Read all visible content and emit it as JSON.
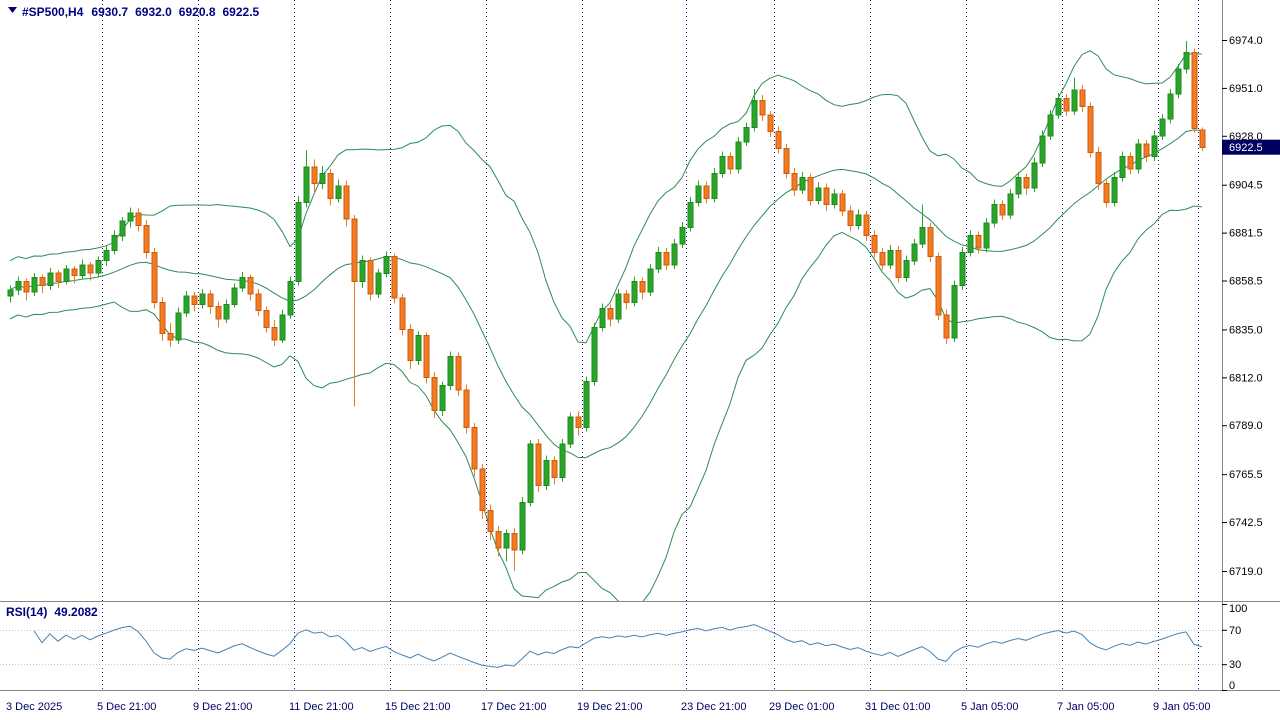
{
  "header": {
    "symbol_timeframe": "#SP500,H4",
    "open": "6930.7",
    "high": "6932.0",
    "low": "6920.8",
    "close": "6922.5"
  },
  "indicator": {
    "label": "RSI(14)",
    "value": "49.2082"
  },
  "colors": {
    "bull": "#2aa52a",
    "bullStroke": "#1c8a1c",
    "bear": "#f07b21",
    "bearStroke": "#cf5a10",
    "bollinger": "#2e8b57",
    "rsi": "#4682b4",
    "separator": "#000080",
    "level": "#c8c8c8",
    "frame": "#888888",
    "axisText": "#000000",
    "timeText": "#000066",
    "badgeBg": "#000060",
    "badgeText": "#ffffff"
  },
  "chart_data": {
    "type": "candlestick",
    "symbol": "#SP500",
    "timeframe": "H4",
    "ohlc": {
      "open": 6930.7,
      "high": 6932.0,
      "low": 6920.8,
      "close": 6922.5
    },
    "current_price": 6922.5,
    "ylim": [
      6719.0,
      6974.0
    ],
    "price_ticks": [
      6974.0,
      6951.0,
      6928.0,
      6904.5,
      6881.5,
      6858.5,
      6835.0,
      6812.0,
      6789.0,
      6765.5,
      6742.5,
      6719.0
    ],
    "time_labels": [
      {
        "text": "3 Dec 2025",
        "i": 0
      },
      {
        "text": "5 Dec 21:00",
        "i": 12
      },
      {
        "text": "9 Dec 21:00",
        "i": 24
      },
      {
        "text": "11 Dec 21:00",
        "i": 36
      },
      {
        "text": "15 Dec 21:00",
        "i": 48
      },
      {
        "text": "17 Dec 21:00",
        "i": 60
      },
      {
        "text": "19 Dec 21:00",
        "i": 72
      },
      {
        "text": "23 Dec 21:00",
        "i": 85
      },
      {
        "text": "29 Dec 01:00",
        "i": 96
      },
      {
        "text": "31 Dec 01:00",
        "i": 108
      },
      {
        "text": "5 Jan 05:00",
        "i": 120
      },
      {
        "text": "7 Jan 05:00",
        "i": 132
      },
      {
        "text": "9 Jan 05:00",
        "i": 144
      }
    ],
    "separators": [
      12,
      24,
      36,
      48,
      60,
      72,
      85,
      96,
      108,
      120,
      132,
      144,
      149
    ],
    "overlays": [
      {
        "name": "Bollinger Bands",
        "period": 20,
        "deviation": 2,
        "applied_to": "close"
      }
    ],
    "rsi": {
      "name": "RSI",
      "period": 14,
      "value": 49.2082,
      "range": [
        0,
        100
      ],
      "ticks": [
        100,
        70,
        30,
        0
      ],
      "levels": [
        70,
        30
      ]
    },
    "candles": [
      [
        6851,
        6856,
        6848,
        6854
      ],
      [
        6854,
        6860.5,
        6851.5,
        6858
      ],
      [
        6858,
        6859.5,
        6849,
        6853
      ],
      [
        6853,
        6862,
        6851,
        6860
      ],
      [
        6860,
        6861.5,
        6852.5,
        6856
      ],
      [
        6856,
        6864.5,
        6854,
        6862
      ],
      [
        6862,
        6863.5,
        6855,
        6858
      ],
      [
        6858,
        6866,
        6856.5,
        6864
      ],
      [
        6864,
        6865.5,
        6857,
        6861
      ],
      [
        6861,
        6868.5,
        6859,
        6866
      ],
      [
        6866,
        6867.5,
        6858.5,
        6862
      ],
      [
        6862,
        6870,
        6860,
        6868
      ],
      [
        6868,
        6875.5,
        6865.5,
        6873
      ],
      [
        6873,
        6882.5,
        6871,
        6880
      ],
      [
        6880,
        6889,
        6877.5,
        6887
      ],
      [
        6887,
        6893.5,
        6884,
        6891
      ],
      [
        6891,
        6893,
        6882,
        6885
      ],
      [
        6885,
        6887.5,
        6869,
        6872
      ],
      [
        6872,
        6874,
        6845,
        6848
      ],
      [
        6848,
        6850.5,
        6829.5,
        6833
      ],
      [
        6833,
        6838,
        6826.5,
        6830
      ],
      [
        6830,
        6845.5,
        6828,
        6843
      ],
      [
        6843,
        6853.5,
        6841,
        6851
      ],
      [
        6851,
        6853,
        6843.5,
        6847
      ],
      [
        6847,
        6854.5,
        6845,
        6852
      ],
      [
        6852,
        6854,
        6842.5,
        6846
      ],
      [
        6846,
        6848.5,
        6836,
        6840
      ],
      [
        6840,
        6849.5,
        6838,
        6847
      ],
      [
        6847,
        6857,
        6845.5,
        6855
      ],
      [
        6855,
        6862.5,
        6853,
        6860
      ],
      [
        6860,
        6861.5,
        6849,
        6852
      ],
      [
        6852,
        6854.5,
        6841.5,
        6844
      ],
      [
        6844,
        6846,
        6833.5,
        6836
      ],
      [
        6836,
        6839.5,
        6827,
        6830
      ],
      [
        6830,
        6844.5,
        6828.5,
        6842
      ],
      [
        6842,
        6860.5,
        6840,
        6858
      ],
      [
        6858,
        6899,
        6856,
        6896
      ],
      [
        6896,
        6921,
        6893.5,
        6913
      ],
      [
        6913,
        6916.5,
        6901,
        6905
      ],
      [
        6905,
        6913.5,
        6902.5,
        6910
      ],
      [
        6910,
        6912,
        6894.5,
        6898
      ],
      [
        6898,
        6907,
        6896,
        6904
      ],
      [
        6904,
        6906.5,
        6884.5,
        6888
      ],
      [
        6888,
        6890,
        6798,
        6858
      ],
      [
        6858,
        6870.5,
        6855,
        6868
      ],
      [
        6868,
        6869.5,
        6849,
        6852
      ],
      [
        6852,
        6864,
        6850,
        6862
      ],
      [
        6862,
        6872.5,
        6860,
        6870
      ],
      [
        6870,
        6871.5,
        6847.5,
        6850
      ],
      [
        6850,
        6852,
        6832,
        6835
      ],
      [
        6835,
        6837.5,
        6816,
        6820
      ],
      [
        6820,
        6834,
        6818,
        6832
      ],
      [
        6832,
        6833.5,
        6809,
        6812
      ],
      [
        6812,
        6814.5,
        6792.5,
        6796
      ],
      [
        6796,
        6810,
        6793.5,
        6808
      ],
      [
        6808,
        6824.5,
        6806,
        6822
      ],
      [
        6822,
        6824,
        6803,
        6806
      ],
      [
        6806,
        6808.5,
        6785,
        6788
      ],
      [
        6788,
        6790,
        6764.5,
        6768
      ],
      [
        6768,
        6770.5,
        6744,
        6748
      ],
      [
        6748,
        6751,
        6734,
        6738
      ],
      [
        6738,
        6740.5,
        6726,
        6730
      ],
      [
        6730,
        6739,
        6723.5,
        6737
      ],
      [
        6737,
        6739.5,
        6719,
        6729
      ],
      [
        6729,
        6754.5,
        6727,
        6752
      ],
      [
        6752,
        6782,
        6750,
        6780
      ],
      [
        6780,
        6782.5,
        6757,
        6760
      ],
      [
        6760,
        6774.5,
        6758,
        6772
      ],
      [
        6772,
        6774,
        6760.5,
        6764
      ],
      [
        6764,
        6782.5,
        6762,
        6780
      ],
      [
        6780,
        6795,
        6778,
        6793
      ],
      [
        6793,
        6795.5,
        6784,
        6788
      ],
      [
        6788,
        6812.5,
        6786,
        6810
      ],
      [
        6810,
        6838,
        6808,
        6836
      ],
      [
        6836,
        6847.5,
        6834,
        6845
      ],
      [
        6845,
        6847,
        6836.5,
        6840
      ],
      [
        6840,
        6854.5,
        6838,
        6852
      ],
      [
        6852,
        6854,
        6844.5,
        6848
      ],
      [
        6848,
        6860.5,
        6846,
        6858
      ],
      [
        6858,
        6860,
        6849.5,
        6853
      ],
      [
        6853,
        6866.5,
        6851,
        6864
      ],
      [
        6864,
        6874.5,
        6862,
        6872
      ],
      [
        6872,
        6874,
        6863.5,
        6866
      ],
      [
        6866,
        6878.5,
        6864,
        6876
      ],
      [
        6876,
        6886.5,
        6874,
        6884
      ],
      [
        6884,
        6898.5,
        6882,
        6896
      ],
      [
        6896,
        6906.5,
        6894,
        6904
      ],
      [
        6904,
        6906,
        6895.5,
        6898
      ],
      [
        6898,
        6912.5,
        6896,
        6910
      ],
      [
        6910,
        6920.5,
        6908,
        6918
      ],
      [
        6918,
        6920,
        6909.5,
        6912
      ],
      [
        6912,
        6927.5,
        6910,
        6925
      ],
      [
        6925,
        6934.5,
        6923,
        6932
      ],
      [
        6932,
        6950.5,
        6930,
        6945
      ],
      [
        6945,
        6947.5,
        6935,
        6938
      ],
      [
        6938,
        6940,
        6927.5,
        6930
      ],
      [
        6930,
        6932.5,
        6919.5,
        6922
      ],
      [
        6922,
        6924,
        6907.5,
        6910
      ],
      [
        6910,
        6912.5,
        6899,
        6902
      ],
      [
        6902,
        6910.5,
        6900,
        6908
      ],
      [
        6908,
        6910,
        6894.5,
        6897
      ],
      [
        6897,
        6905.5,
        6895,
        6903
      ],
      [
        6903,
        6905,
        6892,
        6895
      ],
      [
        6895,
        6902.5,
        6893,
        6900
      ],
      [
        6900,
        6902,
        6889.5,
        6892
      ],
      [
        6892,
        6894.5,
        6882,
        6885
      ],
      [
        6885,
        6892.5,
        6883,
        6890
      ],
      [
        6890,
        6892,
        6877.5,
        6880
      ],
      [
        6880,
        6882.5,
        6869.5,
        6872
      ],
      [
        6872,
        6874,
        6863.5,
        6866
      ],
      [
        6866,
        6875.5,
        6864,
        6873
      ],
      [
        6873,
        6875,
        6857.5,
        6860
      ],
      [
        6860,
        6870.5,
        6858,
        6868
      ],
      [
        6868,
        6878.5,
        6866,
        6876
      ],
      [
        6876,
        6895,
        6874,
        6884
      ],
      [
        6884,
        6886,
        6867.5,
        6870
      ],
      [
        6870,
        6872,
        6839.5,
        6842
      ],
      [
        6842,
        6844.5,
        6828,
        6831
      ],
      [
        6831,
        6858.5,
        6829,
        6856
      ],
      [
        6856,
        6874.5,
        6854,
        6872
      ],
      [
        6872,
        6882.5,
        6870,
        6880
      ],
      [
        6880,
        6882,
        6871.5,
        6874
      ],
      [
        6874,
        6888.5,
        6872,
        6886
      ],
      [
        6886,
        6897.5,
        6884,
        6895
      ],
      [
        6895,
        6897,
        6887.5,
        6890
      ],
      [
        6890,
        6902.5,
        6888,
        6900
      ],
      [
        6900,
        6910.5,
        6898,
        6908
      ],
      [
        6908,
        6910,
        6899.5,
        6903
      ],
      [
        6903,
        6917.5,
        6901,
        6915
      ],
      [
        6915,
        6930.5,
        6913,
        6928
      ],
      [
        6928,
        6940.5,
        6926,
        6938
      ],
      [
        6938,
        6948.5,
        6936,
        6946
      ],
      [
        6946,
        6948,
        6937.5,
        6940
      ],
      [
        6940,
        6956,
        6938,
        6950
      ],
      [
        6950,
        6952.5,
        6939.5,
        6942
      ],
      [
        6942,
        6944,
        6917.5,
        6920
      ],
      [
        6920,
        6922.5,
        6902,
        6905
      ],
      [
        6905,
        6907,
        6893.5,
        6896
      ],
      [
        6896,
        6910.5,
        6894,
        6908
      ],
      [
        6908,
        6920.5,
        6906,
        6918
      ],
      [
        6918,
        6920,
        6909.5,
        6912
      ],
      [
        6912,
        6926.5,
        6910,
        6924
      ],
      [
        6924,
        6926,
        6915.5,
        6918
      ],
      [
        6918,
        6930.5,
        6916,
        6928
      ],
      [
        6928,
        6938.5,
        6926,
        6936
      ],
      [
        6936,
        6950.5,
        6934,
        6948
      ],
      [
        6948,
        6962.5,
        6946,
        6960
      ],
      [
        6960,
        6973.5,
        6958,
        6968
      ],
      [
        6968,
        6970,
        6929.5,
        6931.5
      ],
      [
        6930.7,
        6932,
        6920.8,
        6922.5
      ]
    ]
  }
}
